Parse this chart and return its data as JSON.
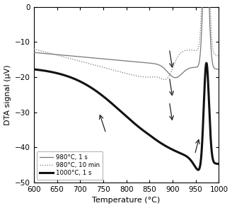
{
  "title": "",
  "xlabel": "Temperature (°C)",
  "ylabel": "DTA signal (μV)",
  "xlim": [
    600,
    1000
  ],
  "ylim": [
    -50,
    0
  ],
  "xticks": [
    600,
    650,
    700,
    750,
    800,
    850,
    900,
    950,
    1000
  ],
  "yticks": [
    0,
    -10,
    -20,
    -30,
    -40,
    -50
  ],
  "background_color": "#ffffff",
  "curve1_color": "#777777",
  "curve2_color": "#777777",
  "curve3_color": "#111111",
  "curve1_lw": 0.9,
  "curve2_lw": 0.9,
  "curve3_lw": 2.2,
  "legend_labels": [
    "980°C, 1 s",
    "980°C, 10 min",
    "1000°C, 1 s"
  ],
  "arrow_color": "#222222",
  "arrows": [
    {
      "tail_x": 756,
      "tail_y": -36,
      "head_x": 741,
      "head_y": -30
    },
    {
      "tail_x": 893,
      "tail_y": -12,
      "head_x": 900,
      "head_y": -18
    },
    {
      "tail_x": 893,
      "tail_y": -20,
      "head_x": 900,
      "head_y": -26
    },
    {
      "tail_x": 893,
      "tail_y": -27,
      "head_x": 900,
      "head_y": -33
    },
    {
      "tail_x": 948,
      "tail_y": -42,
      "head_x": 958,
      "head_y": -37
    }
  ]
}
